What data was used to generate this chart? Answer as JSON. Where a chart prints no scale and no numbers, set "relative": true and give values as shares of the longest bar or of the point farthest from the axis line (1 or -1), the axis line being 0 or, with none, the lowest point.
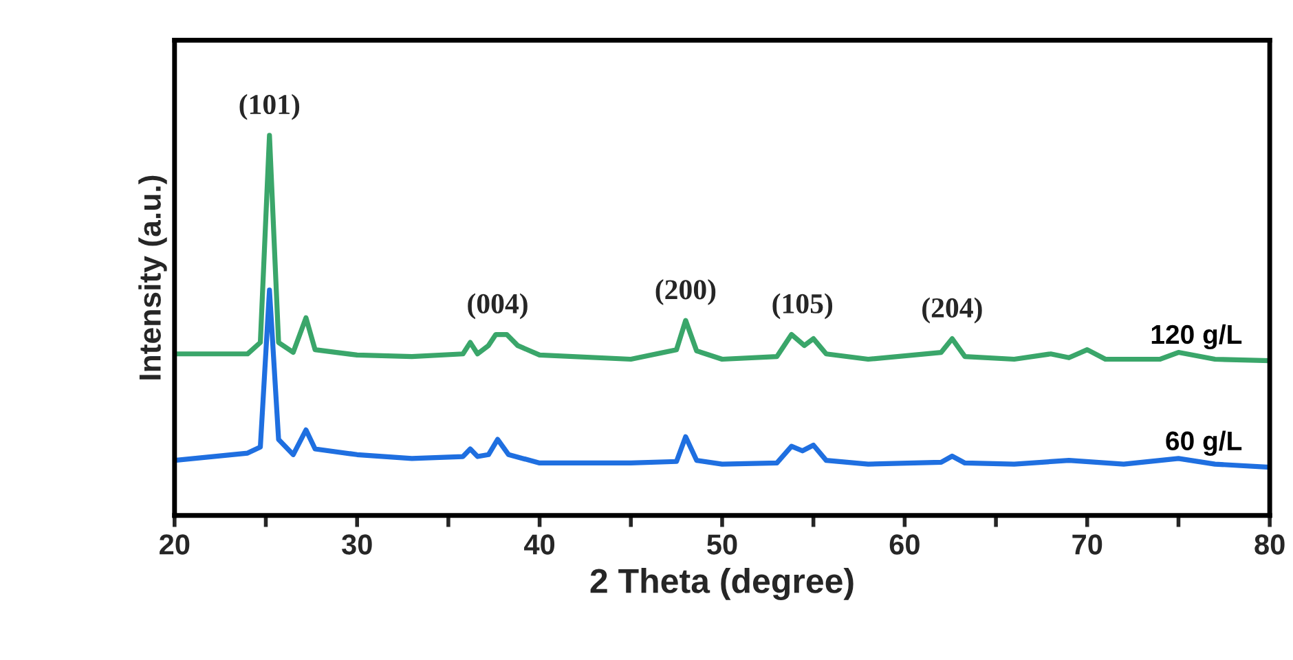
{
  "chart_data": {
    "type": "line",
    "relative": true,
    "xlabel": "2 Theta (degree)",
    "ylabel": "Intensity (a.u.)",
    "xlim": [
      20,
      80
    ],
    "xticks": [
      20,
      {
        "value": 25,
        "label": null
      },
      30,
      {
        "value": 35,
        "label": null
      },
      40,
      {
        "value": 45,
        "label": null
      },
      50,
      {
        "value": 55,
        "label": null
      },
      60,
      {
        "value": 65,
        "label": null
      },
      70,
      {
        "value": 75,
        "label": null
      },
      80
    ],
    "legend": false,
    "grid": false,
    "series": [
      {
        "name": "120 g/L",
        "color": "#3aa66a",
        "x": [
          20,
          24,
          24.7,
          25.2,
          25.7,
          26.5,
          27.2,
          27.7,
          30,
          33,
          35.8,
          36.2,
          36.6,
          37.2,
          37.6,
          38.2,
          38.8,
          40,
          45,
          47.5,
          48,
          48.6,
          50,
          53,
          53.8,
          54.5,
          55,
          55.7,
          58,
          62,
          62.6,
          63.3,
          66,
          68,
          69,
          70,
          71,
          74,
          75,
          77,
          80
        ],
        "values": [
          0.425,
          0.425,
          0.455,
          1.0,
          0.455,
          0.429,
          0.52,
          0.436,
          0.422,
          0.418,
          0.425,
          0.455,
          0.425,
          0.447,
          0.476,
          0.476,
          0.447,
          0.422,
          0.411,
          0.436,
          0.513,
          0.433,
          0.411,
          0.418,
          0.476,
          0.447,
          0.465,
          0.425,
          0.411,
          0.429,
          0.465,
          0.418,
          0.411,
          0.425,
          0.415,
          0.436,
          0.411,
          0.411,
          0.429,
          0.411,
          0.407
        ]
      },
      {
        "name": "60 g/L",
        "color": "#1f6fe0",
        "x": [
          20,
          24,
          24.7,
          25.2,
          25.7,
          26.5,
          27.2,
          27.7,
          30,
          33,
          35.8,
          36.2,
          36.6,
          37.2,
          37.7,
          38.3,
          40,
          45,
          47.5,
          48,
          48.6,
          50,
          53,
          53.8,
          54.4,
          55,
          55.7,
          58,
          62,
          62.6,
          63.3,
          66,
          69,
          72,
          75,
          77,
          80
        ],
        "values": [
          0.145,
          0.164,
          0.18,
          0.593,
          0.2,
          0.16,
          0.225,
          0.175,
          0.16,
          0.15,
          0.155,
          0.175,
          0.155,
          0.16,
          0.2,
          0.16,
          0.138,
          0.138,
          0.142,
          0.207,
          0.145,
          0.135,
          0.138,
          0.182,
          0.17,
          0.185,
          0.145,
          0.135,
          0.14,
          0.156,
          0.138,
          0.135,
          0.145,
          0.135,
          0.15,
          0.135,
          0.127
        ]
      }
    ],
    "annotations": [
      {
        "text": "(101)",
        "x": 25.2,
        "y": 1.0
      },
      {
        "text": "(004)",
        "x": 37.7,
        "y": 0.476
      },
      {
        "text": "(200)",
        "x": 48,
        "y": 0.513
      },
      {
        "text": "(105)",
        "x": 54.4,
        "y": 0.476
      },
      {
        "text": "(204)",
        "x": 62.6,
        "y": 0.465
      }
    ]
  }
}
